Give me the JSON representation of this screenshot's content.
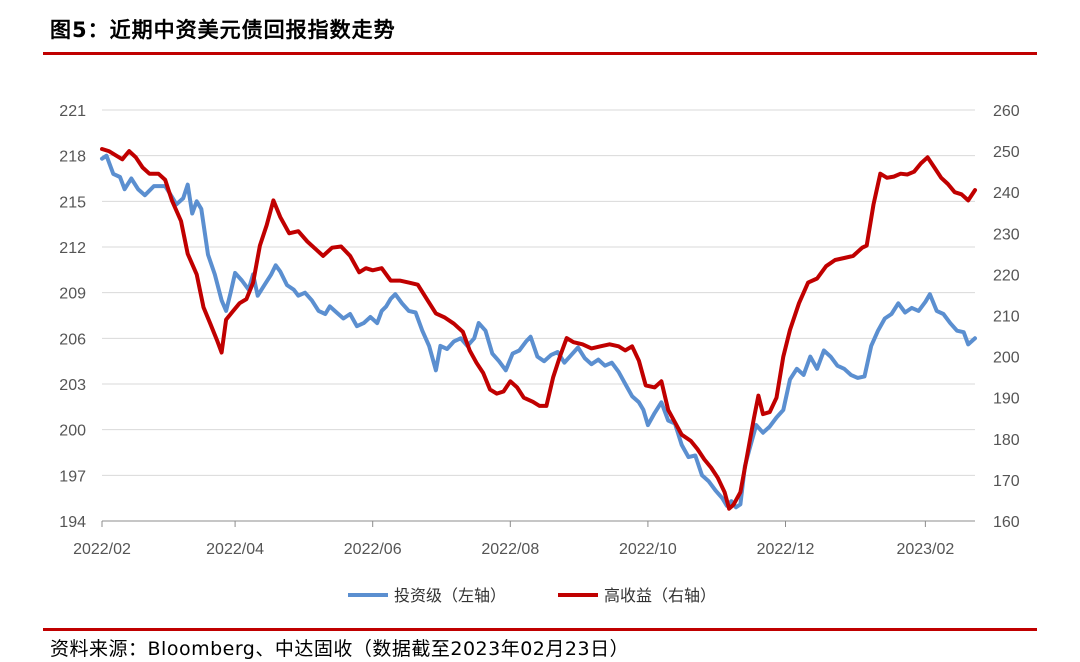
{
  "header": {
    "title": "图5：近期中资美元债回报指数走势"
  },
  "footer": {
    "source": "资料来源：Bloomberg、中达固收（数据截至2023年02月23日）"
  },
  "colors": {
    "investment_grade": "#5b8fd0",
    "high_yield": "#c00000",
    "rule": "#c00000",
    "grid": "#d9d9d9"
  },
  "chart_data": {
    "type": "line",
    "title": "",
    "x_axis": {
      "range": [
        "2022-02-01",
        "2023-02-23"
      ],
      "ticks": [
        "2022/02",
        "2022/04",
        "2022/06",
        "2022/08",
        "2022/10",
        "2022/12",
        "2023/02"
      ],
      "tick_dates": [
        "2022-02-01",
        "2022-04-01",
        "2022-06-01",
        "2022-08-01",
        "2022-10-01",
        "2022-12-01",
        "2023-02-01"
      ]
    },
    "y_left": {
      "range": [
        194,
        221
      ],
      "ticks": [
        194,
        197,
        200,
        203,
        206,
        209,
        212,
        215,
        218,
        221
      ]
    },
    "y_right": {
      "range": [
        160,
        260
      ],
      "ticks": [
        160,
        170,
        180,
        190,
        200,
        210,
        220,
        230,
        240,
        250,
        260
      ]
    },
    "grid": true,
    "legend_position": "bottom",
    "series": [
      {
        "name": "投资级（左轴）",
        "axis": "left",
        "points": [
          [
            "2022-02-01",
            217.8
          ],
          [
            "2022-02-03",
            218.0
          ],
          [
            "2022-02-06",
            216.8
          ],
          [
            "2022-02-09",
            216.6
          ],
          [
            "2022-02-11",
            215.8
          ],
          [
            "2022-02-14",
            216.5
          ],
          [
            "2022-02-17",
            215.8
          ],
          [
            "2022-02-20",
            215.4
          ],
          [
            "2022-02-24",
            216.0
          ],
          [
            "2022-03-01",
            216.0
          ],
          [
            "2022-03-04",
            215.3
          ],
          [
            "2022-03-06",
            214.8
          ],
          [
            "2022-03-09",
            215.2
          ],
          [
            "2022-03-11",
            216.1
          ],
          [
            "2022-03-13",
            214.2
          ],
          [
            "2022-03-15",
            215.0
          ],
          [
            "2022-03-17",
            214.5
          ],
          [
            "2022-03-20",
            211.5
          ],
          [
            "2022-03-23",
            210.2
          ],
          [
            "2022-03-26",
            208.5
          ],
          [
            "2022-03-28",
            207.8
          ],
          [
            "2022-03-30",
            209.0
          ],
          [
            "2022-04-01",
            210.3
          ],
          [
            "2022-04-04",
            209.8
          ],
          [
            "2022-04-07",
            209.2
          ],
          [
            "2022-04-09",
            210.2
          ],
          [
            "2022-04-11",
            208.8
          ],
          [
            "2022-04-14",
            209.5
          ],
          [
            "2022-04-17",
            210.2
          ],
          [
            "2022-04-19",
            210.8
          ],
          [
            "2022-04-21",
            210.4
          ],
          [
            "2022-04-24",
            209.5
          ],
          [
            "2022-04-27",
            209.2
          ],
          [
            "2022-04-29",
            208.8
          ],
          [
            "2022-05-02",
            209.0
          ],
          [
            "2022-05-05",
            208.5
          ],
          [
            "2022-05-08",
            207.8
          ],
          [
            "2022-05-11",
            207.6
          ],
          [
            "2022-05-13",
            208.1
          ],
          [
            "2022-05-16",
            207.7
          ],
          [
            "2022-05-19",
            207.3
          ],
          [
            "2022-05-22",
            207.6
          ],
          [
            "2022-05-25",
            206.8
          ],
          [
            "2022-05-28",
            207.0
          ],
          [
            "2022-05-31",
            207.4
          ],
          [
            "2022-06-03",
            207.0
          ],
          [
            "2022-06-05",
            207.8
          ],
          [
            "2022-06-07",
            208.1
          ],
          [
            "2022-06-09",
            208.6
          ],
          [
            "2022-06-11",
            208.9
          ],
          [
            "2022-06-14",
            208.3
          ],
          [
            "2022-06-17",
            207.8
          ],
          [
            "2022-06-20",
            207.7
          ],
          [
            "2022-06-23",
            206.5
          ],
          [
            "2022-06-26",
            205.5
          ],
          [
            "2022-06-29",
            203.9
          ],
          [
            "2022-07-01",
            205.5
          ],
          [
            "2022-07-04",
            205.3
          ],
          [
            "2022-07-07",
            205.8
          ],
          [
            "2022-07-10",
            206.0
          ],
          [
            "2022-07-13",
            205.5
          ],
          [
            "2022-07-16",
            206.0
          ],
          [
            "2022-07-18",
            207.0
          ],
          [
            "2022-07-21",
            206.5
          ],
          [
            "2022-07-24",
            205.0
          ],
          [
            "2022-07-27",
            204.5
          ],
          [
            "2022-07-30",
            203.9
          ],
          [
            "2022-08-02",
            205.0
          ],
          [
            "2022-08-05",
            205.2
          ],
          [
            "2022-08-08",
            205.8
          ],
          [
            "2022-08-10",
            206.1
          ],
          [
            "2022-08-13",
            204.8
          ],
          [
            "2022-08-16",
            204.5
          ],
          [
            "2022-08-19",
            204.9
          ],
          [
            "2022-08-22",
            205.1
          ],
          [
            "2022-08-25",
            204.4
          ],
          [
            "2022-08-28",
            204.9
          ],
          [
            "2022-08-31",
            205.4
          ],
          [
            "2022-09-03",
            204.7
          ],
          [
            "2022-09-06",
            204.3
          ],
          [
            "2022-09-09",
            204.6
          ],
          [
            "2022-09-12",
            204.2
          ],
          [
            "2022-09-15",
            204.4
          ],
          [
            "2022-09-18",
            203.8
          ],
          [
            "2022-09-21",
            203.0
          ],
          [
            "2022-09-24",
            202.2
          ],
          [
            "2022-09-27",
            201.8
          ],
          [
            "2022-09-29",
            201.3
          ],
          [
            "2022-10-01",
            200.3
          ],
          [
            "2022-10-04",
            201.1
          ],
          [
            "2022-10-07",
            201.8
          ],
          [
            "2022-10-10",
            200.6
          ],
          [
            "2022-10-13",
            200.4
          ],
          [
            "2022-10-16",
            199.0
          ],
          [
            "2022-10-19",
            198.2
          ],
          [
            "2022-10-22",
            198.3
          ],
          [
            "2022-10-25",
            197.0
          ],
          [
            "2022-10-28",
            196.6
          ],
          [
            "2022-10-31",
            196.0
          ],
          [
            "2022-11-03",
            195.5
          ],
          [
            "2022-11-05",
            195.0
          ],
          [
            "2022-11-07",
            195.3
          ],
          [
            "2022-11-09",
            194.9
          ],
          [
            "2022-11-11",
            195.1
          ],
          [
            "2022-11-13",
            197.6
          ],
          [
            "2022-11-15",
            198.7
          ],
          [
            "2022-11-18",
            200.3
          ],
          [
            "2022-11-21",
            199.8
          ],
          [
            "2022-11-24",
            200.2
          ],
          [
            "2022-11-27",
            200.8
          ],
          [
            "2022-11-30",
            201.3
          ],
          [
            "2022-12-03",
            203.3
          ],
          [
            "2022-12-06",
            204.0
          ],
          [
            "2022-12-09",
            203.6
          ],
          [
            "2022-12-12",
            204.8
          ],
          [
            "2022-12-15",
            204.0
          ],
          [
            "2022-12-18",
            205.2
          ],
          [
            "2022-12-21",
            204.8
          ],
          [
            "2022-12-24",
            204.2
          ],
          [
            "2022-12-27",
            204.0
          ],
          [
            "2022-12-30",
            203.6
          ],
          [
            "2023-01-02",
            203.4
          ],
          [
            "2023-01-05",
            203.5
          ],
          [
            "2023-01-08",
            205.5
          ],
          [
            "2023-01-11",
            206.5
          ],
          [
            "2023-01-14",
            207.3
          ],
          [
            "2023-01-17",
            207.6
          ],
          [
            "2023-01-20",
            208.3
          ],
          [
            "2023-01-23",
            207.7
          ],
          [
            "2023-01-26",
            208.0
          ],
          [
            "2023-01-29",
            207.8
          ],
          [
            "2023-02-01",
            208.4
          ],
          [
            "2023-02-03",
            208.9
          ],
          [
            "2023-02-06",
            207.8
          ],
          [
            "2023-02-09",
            207.6
          ],
          [
            "2023-02-12",
            207.0
          ],
          [
            "2023-02-15",
            206.5
          ],
          [
            "2023-02-18",
            206.4
          ],
          [
            "2023-02-20",
            205.6
          ],
          [
            "2023-02-23",
            206.0
          ]
        ]
      },
      {
        "name": "高收益（右轴）",
        "axis": "right",
        "points": [
          [
            "2022-02-01",
            250.5
          ],
          [
            "2022-02-04",
            250.0
          ],
          [
            "2022-02-07",
            249.0
          ],
          [
            "2022-02-10",
            248.0
          ],
          [
            "2022-02-13",
            250.0
          ],
          [
            "2022-02-16",
            248.5
          ],
          [
            "2022-02-19",
            246.0
          ],
          [
            "2022-02-22",
            244.5
          ],
          [
            "2022-02-26",
            244.5
          ],
          [
            "2022-03-01",
            243.0
          ],
          [
            "2022-03-04",
            238.0
          ],
          [
            "2022-03-08",
            233.0
          ],
          [
            "2022-03-11",
            225.0
          ],
          [
            "2022-03-15",
            220.0
          ],
          [
            "2022-03-18",
            212.0
          ],
          [
            "2022-03-21",
            208.0
          ],
          [
            "2022-03-24",
            204.0
          ],
          [
            "2022-03-26",
            201.0
          ],
          [
            "2022-03-28",
            209.0
          ],
          [
            "2022-03-31",
            211.0
          ],
          [
            "2022-04-03",
            213.0
          ],
          [
            "2022-04-06",
            214.0
          ],
          [
            "2022-04-09",
            218.0
          ],
          [
            "2022-04-12",
            227.0
          ],
          [
            "2022-04-15",
            232.0
          ],
          [
            "2022-04-18",
            238.0
          ],
          [
            "2022-04-21",
            234.0
          ],
          [
            "2022-04-25",
            230.0
          ],
          [
            "2022-04-29",
            230.5
          ],
          [
            "2022-05-03",
            228.0
          ],
          [
            "2022-05-07",
            226.0
          ],
          [
            "2022-05-10",
            224.5
          ],
          [
            "2022-05-14",
            226.5
          ],
          [
            "2022-05-18",
            226.8
          ],
          [
            "2022-05-22",
            224.5
          ],
          [
            "2022-05-26",
            220.5
          ],
          [
            "2022-05-29",
            221.5
          ],
          [
            "2022-06-01",
            221.0
          ],
          [
            "2022-06-05",
            221.5
          ],
          [
            "2022-06-09",
            218.5
          ],
          [
            "2022-06-13",
            218.5
          ],
          [
            "2022-06-17",
            218.0
          ],
          [
            "2022-06-21",
            217.5
          ],
          [
            "2022-06-25",
            214.0
          ],
          [
            "2022-06-29",
            210.5
          ],
          [
            "2022-07-03",
            209.5
          ],
          [
            "2022-07-07",
            208.0
          ],
          [
            "2022-07-11",
            206.0
          ],
          [
            "2022-07-14",
            201.5
          ],
          [
            "2022-07-17",
            198.5
          ],
          [
            "2022-07-20",
            196.0
          ],
          [
            "2022-07-23",
            192.0
          ],
          [
            "2022-07-26",
            191.0
          ],
          [
            "2022-07-29",
            191.5
          ],
          [
            "2022-08-01",
            194.0
          ],
          [
            "2022-08-04",
            192.5
          ],
          [
            "2022-08-07",
            190.0
          ],
          [
            "2022-08-11",
            189.0
          ],
          [
            "2022-08-14",
            188.0
          ],
          [
            "2022-08-17",
            188.0
          ],
          [
            "2022-08-20",
            195.0
          ],
          [
            "2022-08-23",
            200.0
          ],
          [
            "2022-08-26",
            204.5
          ],
          [
            "2022-08-29",
            203.5
          ],
          [
            "2022-09-02",
            203.0
          ],
          [
            "2022-09-06",
            202.0
          ],
          [
            "2022-09-10",
            202.5
          ],
          [
            "2022-09-14",
            203.0
          ],
          [
            "2022-09-18",
            202.5
          ],
          [
            "2022-09-21",
            201.5
          ],
          [
            "2022-09-24",
            202.5
          ],
          [
            "2022-09-27",
            199.0
          ],
          [
            "2022-09-30",
            193.0
          ],
          [
            "2022-10-04",
            192.5
          ],
          [
            "2022-10-07",
            194.0
          ],
          [
            "2022-10-10",
            187.0
          ],
          [
            "2022-10-13",
            184.0
          ],
          [
            "2022-10-16",
            181.0
          ],
          [
            "2022-10-20",
            179.5
          ],
          [
            "2022-10-23",
            177.5
          ],
          [
            "2022-10-26",
            175.0
          ],
          [
            "2022-10-29",
            173.0
          ],
          [
            "2022-11-01",
            170.5
          ],
          [
            "2022-11-04",
            167.0
          ],
          [
            "2022-11-06",
            163.0
          ],
          [
            "2022-11-08",
            164.0
          ],
          [
            "2022-11-11",
            167.0
          ],
          [
            "2022-11-14",
            176.0
          ],
          [
            "2022-11-17",
            185.0
          ],
          [
            "2022-11-19",
            190.5
          ],
          [
            "2022-11-21",
            186.0
          ],
          [
            "2022-11-24",
            186.5
          ],
          [
            "2022-11-27",
            190.0
          ],
          [
            "2022-11-30",
            200.0
          ],
          [
            "2022-12-03",
            206.5
          ],
          [
            "2022-12-07",
            213.0
          ],
          [
            "2022-12-11",
            218.0
          ],
          [
            "2022-12-15",
            219.0
          ],
          [
            "2022-12-19",
            222.0
          ],
          [
            "2022-12-23",
            223.5
          ],
          [
            "2022-12-27",
            224.0
          ],
          [
            "2022-12-31",
            224.5
          ],
          [
            "2023-01-04",
            226.5
          ],
          [
            "2023-01-06",
            227.0
          ],
          [
            "2023-01-09",
            237.0
          ],
          [
            "2023-01-12",
            244.5
          ],
          [
            "2023-01-15",
            243.5
          ],
          [
            "2023-01-18",
            243.8
          ],
          [
            "2023-01-21",
            244.5
          ],
          [
            "2023-01-24",
            244.3
          ],
          [
            "2023-01-27",
            245.0
          ],
          [
            "2023-01-30",
            247.0
          ],
          [
            "2023-02-02",
            248.5
          ],
          [
            "2023-02-05",
            246.0
          ],
          [
            "2023-02-08",
            243.5
          ],
          [
            "2023-02-11",
            242.0
          ],
          [
            "2023-02-14",
            240.0
          ],
          [
            "2023-02-17",
            239.5
          ],
          [
            "2023-02-20",
            238.0
          ],
          [
            "2023-02-23",
            240.5
          ]
        ]
      }
    ]
  }
}
